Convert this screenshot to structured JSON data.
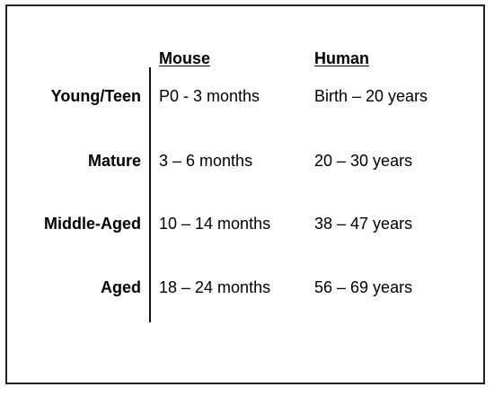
{
  "table": {
    "columns": [
      "Mouse",
      "Human"
    ],
    "rows": [
      {
        "label": "Young/Teen",
        "mouse": "P0 - 3 months",
        "human": "Birth – 20 years"
      },
      {
        "label": "Mature",
        "mouse": "3 – 6 months",
        "human": "20 – 30 years"
      },
      {
        "label": "Middle-Aged",
        "mouse": "10 – 14 months",
        "human": "38 – 47 years"
      },
      {
        "label": "Aged",
        "mouse": "18 – 24 months",
        "human": "56 – 69 years"
      }
    ]
  }
}
